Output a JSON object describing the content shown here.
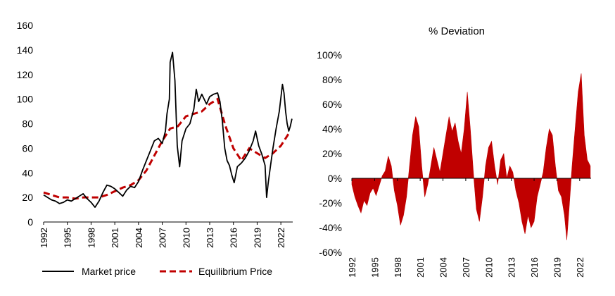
{
  "chart_data": [
    {
      "type": "line",
      "title": "",
      "xlabel": "",
      "ylabel": "",
      "xlim": [
        1992,
        2023.5
      ],
      "ylim": [
        0,
        160
      ],
      "y_ticks": [
        0,
        20,
        40,
        60,
        80,
        100,
        120,
        140,
        160
      ],
      "x_ticks": [
        "1992",
        "1995",
        "1998",
        "2001",
        "2004",
        "2007",
        "2010",
        "2013",
        "2016",
        "2019",
        "2022"
      ],
      "legend_position": "bottom",
      "series": [
        {
          "name": "Market price",
          "color": "#000000",
          "style": "solid",
          "x": [
            1992.0,
            1992.5,
            1993.0,
            1993.5,
            1994.0,
            1994.5,
            1995.0,
            1995.5,
            1996.0,
            1996.5,
            1997.0,
            1997.5,
            1998.0,
            1998.5,
            1999.0,
            1999.5,
            2000.0,
            2000.5,
            2001.0,
            2001.5,
            2002.0,
            2002.5,
            2003.0,
            2003.5,
            2004.0,
            2004.5,
            2005.0,
            2005.5,
            2006.0,
            2006.5,
            2007.0,
            2007.4,
            2007.6,
            2007.9,
            2008.0,
            2008.3,
            2008.6,
            2008.9,
            2009.2,
            2009.5,
            2010.0,
            2010.5,
            2011.0,
            2011.3,
            2011.6,
            2012.0,
            2012.3,
            2012.6,
            2013.0,
            2013.5,
            2014.0,
            2014.3,
            2014.6,
            2014.9,
            2015.2,
            2015.5,
            2015.8,
            2016.1,
            2016.5,
            2017.0,
            2017.5,
            2018.0,
            2018.5,
            2018.8,
            2019.2,
            2019.6,
            2020.0,
            2020.2,
            2020.4,
            2020.7,
            2021.0,
            2021.4,
            2021.8,
            2022.2,
            2022.4,
            2022.6,
            2022.8,
            2023.0,
            2023.2,
            2023.4
          ],
          "values": [
            22,
            20,
            18,
            17,
            15,
            16,
            18,
            17,
            19,
            21,
            23,
            19,
            16,
            12,
            17,
            24,
            30,
            29,
            27,
            24,
            21,
            26,
            29,
            28,
            33,
            42,
            50,
            58,
            66,
            68,
            64,
            74,
            88,
            100,
            130,
            138,
            115,
            62,
            45,
            66,
            76,
            80,
            92,
            108,
            98,
            104,
            100,
            96,
            102,
            104,
            105,
            98,
            82,
            60,
            50,
            46,
            38,
            32,
            45,
            48,
            52,
            58,
            66,
            74,
            62,
            55,
            46,
            20,
            32,
            46,
            60,
            76,
            90,
            112,
            105,
            90,
            80,
            74,
            78,
            84
          ]
        },
        {
          "name": "Equilibrium Price",
          "color": "#c00000",
          "style": "dashed",
          "x": [
            1992,
            1993,
            1994,
            1995,
            1996,
            1997,
            1998,
            1999,
            2000,
            2001,
            2002,
            2003,
            2004,
            2005,
            2006,
            2007,
            2008,
            2009,
            2010,
            2011,
            2012,
            2013,
            2014,
            2015,
            2016,
            2017,
            2018,
            2019,
            2020,
            2021,
            2022,
            2023
          ],
          "values": [
            24,
            22,
            20,
            20,
            19,
            20,
            20,
            20,
            22,
            25,
            28,
            30,
            34,
            42,
            54,
            66,
            76,
            78,
            86,
            88,
            90,
            96,
            100,
            78,
            60,
            50,
            60,
            56,
            52,
            56,
            62,
            72
          ]
        }
      ]
    },
    {
      "type": "area",
      "title": "% Deviation",
      "xlabel": "",
      "ylabel": "",
      "xlim": [
        1992,
        2023.5
      ],
      "ylim": [
        -60,
        100
      ],
      "y_ticks": [
        "-60%",
        "-40%",
        "-20%",
        "0%",
        "20%",
        "40%",
        "60%",
        "80%",
        "100%"
      ],
      "y_tick_values": [
        -60,
        -40,
        -20,
        0,
        20,
        40,
        60,
        80,
        100
      ],
      "x_ticks": [
        "1992",
        "1995",
        "1998",
        "2001",
        "2004",
        "2007",
        "2010",
        "2013",
        "2016",
        "2019",
        "2022"
      ],
      "series": [
        {
          "name": "% Deviation",
          "color": "#c00000",
          "x": [
            1992.0,
            1992.4,
            1992.8,
            1993.2,
            1993.6,
            1994.0,
            1994.4,
            1994.8,
            1995.2,
            1995.6,
            1996.0,
            1996.4,
            1996.8,
            1997.2,
            1997.6,
            1998.0,
            1998.4,
            1998.8,
            1999.2,
            1999.6,
            2000.0,
            2000.4,
            2000.8,
            2001.2,
            2001.6,
            2002.0,
            2002.4,
            2002.8,
            2003.2,
            2003.6,
            2004.0,
            2004.4,
            2004.8,
            2005.2,
            2005.6,
            2006.0,
            2006.4,
            2006.8,
            2007.2,
            2007.6,
            2008.0,
            2008.4,
            2008.8,
            2009.2,
            2009.6,
            2010.0,
            2010.4,
            2010.8,
            2011.2,
            2011.6,
            2012.0,
            2012.4,
            2012.8,
            2013.2,
            2013.6,
            2014.0,
            2014.4,
            2014.8,
            2015.2,
            2015.6,
            2016.0,
            2016.4,
            2016.8,
            2017.2,
            2017.6,
            2018.0,
            2018.4,
            2018.8,
            2019.2,
            2019.6,
            2020.0,
            2020.3,
            2020.6,
            2021.0,
            2021.4,
            2021.8,
            2022.2,
            2022.6,
            2023.0,
            2023.4
          ],
          "values": [
            -5,
            -15,
            -22,
            -28,
            -18,
            -22,
            -12,
            -8,
            -14,
            -6,
            2,
            6,
            18,
            10,
            -10,
            -22,
            -38,
            -30,
            -15,
            10,
            35,
            50,
            42,
            10,
            -15,
            -5,
            10,
            25,
            15,
            5,
            20,
            35,
            50,
            38,
            45,
            30,
            20,
            40,
            70,
            40,
            5,
            -25,
            -35,
            -15,
            10,
            25,
            30,
            10,
            -5,
            15,
            20,
            0,
            10,
            5,
            -10,
            -20,
            -35,
            -45,
            -30,
            -40,
            -35,
            -15,
            -5,
            5,
            25,
            40,
            35,
            10,
            -10,
            -15,
            -30,
            -50,
            -25,
            10,
            40,
            70,
            85,
            35,
            15,
            10
          ]
        }
      ]
    }
  ],
  "legend": {
    "market_label": "Market price",
    "equilibrium_label": "Equilibrium Price"
  }
}
